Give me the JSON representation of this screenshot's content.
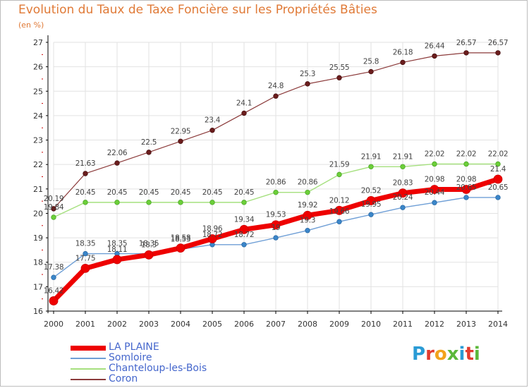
{
  "header": {
    "title": "Evolution du Taux de Taxe Foncière sur les Propriétés Bâties",
    "subtitle": "(en %)"
  },
  "logo": {
    "text": "Proxiti",
    "letter_colors": [
      "#2a9bd5",
      "#e23b2e",
      "#f2a21b",
      "#5bb83a",
      "#2a9bd5",
      "#e23b2e",
      "#5bb83a"
    ]
  },
  "chart_data": {
    "type": "line",
    "title": "Evolution du Taux de Taxe Foncière sur les Propriétés Bâties",
    "ylabel": "(en %)",
    "xlabel": "",
    "ylim": [
      16,
      27
    ],
    "x": [
      "2000",
      "2001",
      "2002",
      "2003",
      "2004",
      "2005",
      "2006",
      "2007",
      "2008",
      "2009",
      "2010",
      "2011",
      "2012",
      "2013",
      "2014"
    ],
    "yticks": [
      16,
      17,
      18,
      19,
      20,
      21,
      22,
      23,
      24,
      25,
      26,
      27
    ],
    "grid": true,
    "legend_position": "bottom-left",
    "series": [
      {
        "name": "LA PLAINE",
        "color": "#ee0000",
        "values": [
          16.42,
          17.75,
          18.11,
          18.3,
          18.58,
          18.96,
          19.34,
          19.53,
          19.92,
          20.12,
          20.52,
          20.83,
          20.98,
          20.98,
          21.4
        ],
        "labels": [
          "16.42",
          "17.75",
          "18.11",
          "18.3",
          "18.58",
          "18.96",
          "19.34",
          "19.53",
          "19.92",
          "20.12",
          "20.52",
          "20.83",
          "20.98",
          "20.98",
          "21.4"
        ]
      },
      {
        "name": "Somloire",
        "color": "#6f9fd6",
        "values": [
          17.38,
          18.35,
          18.35,
          18.35,
          18.53,
          18.72,
          18.72,
          19.0,
          19.3,
          19.66,
          19.95,
          20.24,
          20.44,
          20.65,
          20.65
        ],
        "labels": [
          "17.38",
          "18.35",
          "18.35",
          "18.35",
          "18.53",
          "18.72",
          "18.72",
          "19",
          "19.3",
          "19.66",
          "19.95",
          "20.24",
          "20.44",
          "20.65",
          "20.65"
        ]
      },
      {
        "name": "Chanteloup-les-Bois",
        "color": "#a5e07e",
        "values": [
          19.84,
          20.45,
          20.45,
          20.45,
          20.45,
          20.45,
          20.45,
          20.86,
          20.86,
          21.59,
          21.91,
          21.91,
          22.02,
          22.02,
          22.02
        ],
        "labels": [
          "19.84",
          "20.45",
          "20.45",
          "20.45",
          "20.45",
          "20.45",
          "20.45",
          "20.86",
          "20.86",
          "21.59",
          "21.91",
          "21.91",
          "22.02",
          "22.02",
          "22.02"
        ]
      },
      {
        "name": "Coron",
        "color": "#8b3a3a",
        "values": [
          20.19,
          21.63,
          22.06,
          22.5,
          22.95,
          23.4,
          24.1,
          24.8,
          25.3,
          25.55,
          25.8,
          26.18,
          26.44,
          26.57,
          26.57
        ],
        "labels": [
          "20.19",
          "21.63",
          "22.06",
          "22.5",
          "22.95",
          "23.4",
          "24.1",
          "24.8",
          "25.3",
          "25.55",
          "25.8",
          "26.18",
          "26.44",
          "26.57",
          "26.57"
        ]
      }
    ]
  }
}
